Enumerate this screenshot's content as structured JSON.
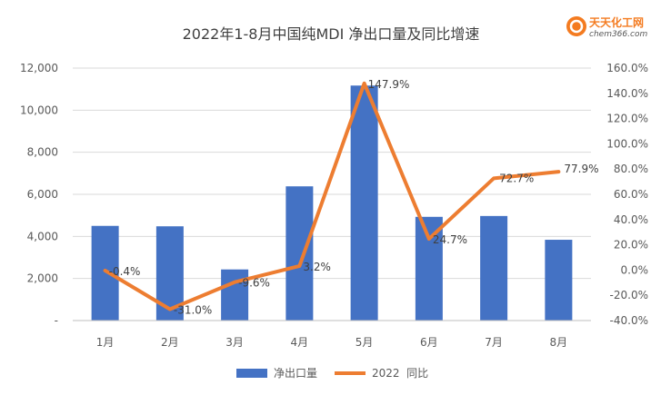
{
  "watermark": {
    "brand_text": "天天化工网",
    "site_text": "chem366.com",
    "brand_color": "#f47b20"
  },
  "chart_data": {
    "type": "bar+line",
    "title": "2022年1-8月中国纯MDI 净出口量及同比增速",
    "categories": [
      "1月",
      "2月",
      "3月",
      "4月",
      "5月",
      "6月",
      "7月",
      "8月"
    ],
    "series": [
      {
        "name": "净出口量",
        "type": "bar",
        "axis": "left",
        "color": "#4472c4",
        "values": [
          4500,
          4480,
          2430,
          6380,
          11170,
          4930,
          4970,
          3840
        ]
      },
      {
        "name": "2022  同比",
        "type": "line",
        "axis": "right",
        "color": "#ed7d31",
        "values": [
          -0.4,
          -31.0,
          -9.6,
          3.2,
          147.9,
          24.7,
          72.7,
          77.9
        ],
        "data_labels": [
          "-0.4%",
          "-31.0%",
          "-9.6%",
          "3.2%",
          "147.9%",
          "24.7%",
          "72.7%",
          "77.9%"
        ]
      }
    ],
    "left_axis": {
      "min": 0,
      "max": 12000,
      "ticks": [
        0,
        2000,
        4000,
        6000,
        8000,
        10000,
        12000
      ],
      "tick_labels": [
        "-",
        "2,000",
        "4,000",
        "6,000",
        "8,000",
        "10,000",
        "12,000"
      ]
    },
    "right_axis": {
      "min": -40,
      "max": 160,
      "ticks": [
        -40,
        -20,
        0,
        20,
        40,
        60,
        80,
        100,
        120,
        140,
        160
      ],
      "tick_labels": [
        "-40.0%",
        "-20.0%",
        "0.0%",
        "20.0%",
        "40.0%",
        "60.0%",
        "80.0%",
        "100.0%",
        "120.0%",
        "140.0%",
        "160.0%"
      ]
    },
    "grid": true,
    "legend_position": "bottom"
  }
}
